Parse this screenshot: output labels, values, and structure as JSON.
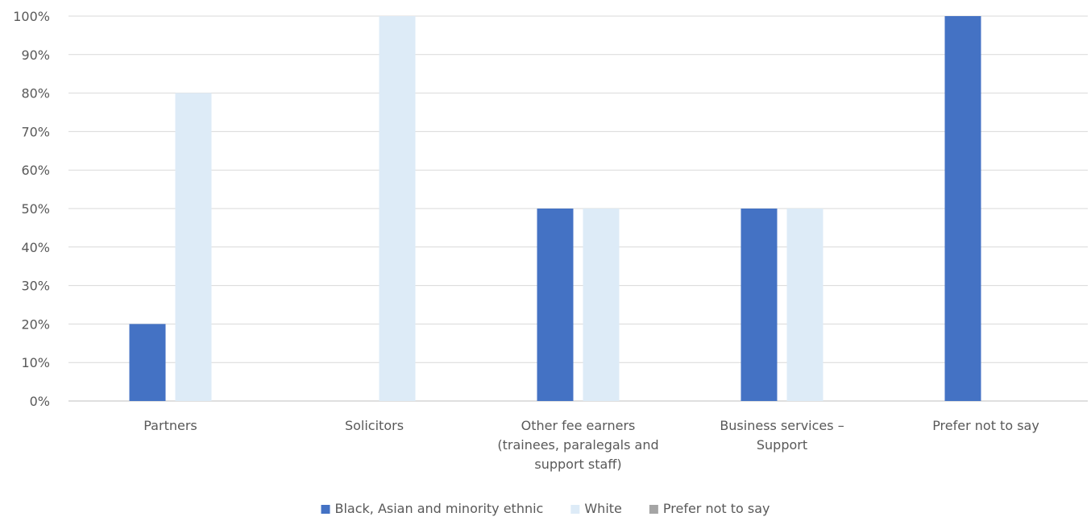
{
  "chart_data": {
    "type": "bar",
    "categories": [
      [
        "Partners"
      ],
      [
        "Solicitors"
      ],
      [
        "Other fee earners",
        "(trainees, paralegals and",
        "support staff)"
      ],
      [
        "Business services –",
        "Support"
      ],
      [
        "Prefer not to say"
      ]
    ],
    "series": [
      {
        "name": "Black, Asian and minority ethnic",
        "color": "#4472C4",
        "values": [
          20,
          0,
          50,
          50,
          100
        ]
      },
      {
        "name": "White",
        "color": "#DDEBF7",
        "values": [
          80,
          100,
          50,
          50,
          0
        ]
      },
      {
        "name": "Prefer not to say",
        "color": "#A5A5A5",
        "values": [
          0,
          0,
          0,
          0,
          0
        ]
      }
    ],
    "yticks": [
      "0%",
      "10%",
      "20%",
      "30%",
      "40%",
      "50%",
      "60%",
      "70%",
      "80%",
      "90%",
      "100%"
    ],
    "ylim": [
      0,
      100
    ],
    "grid": true,
    "legend_position": "bottom"
  }
}
